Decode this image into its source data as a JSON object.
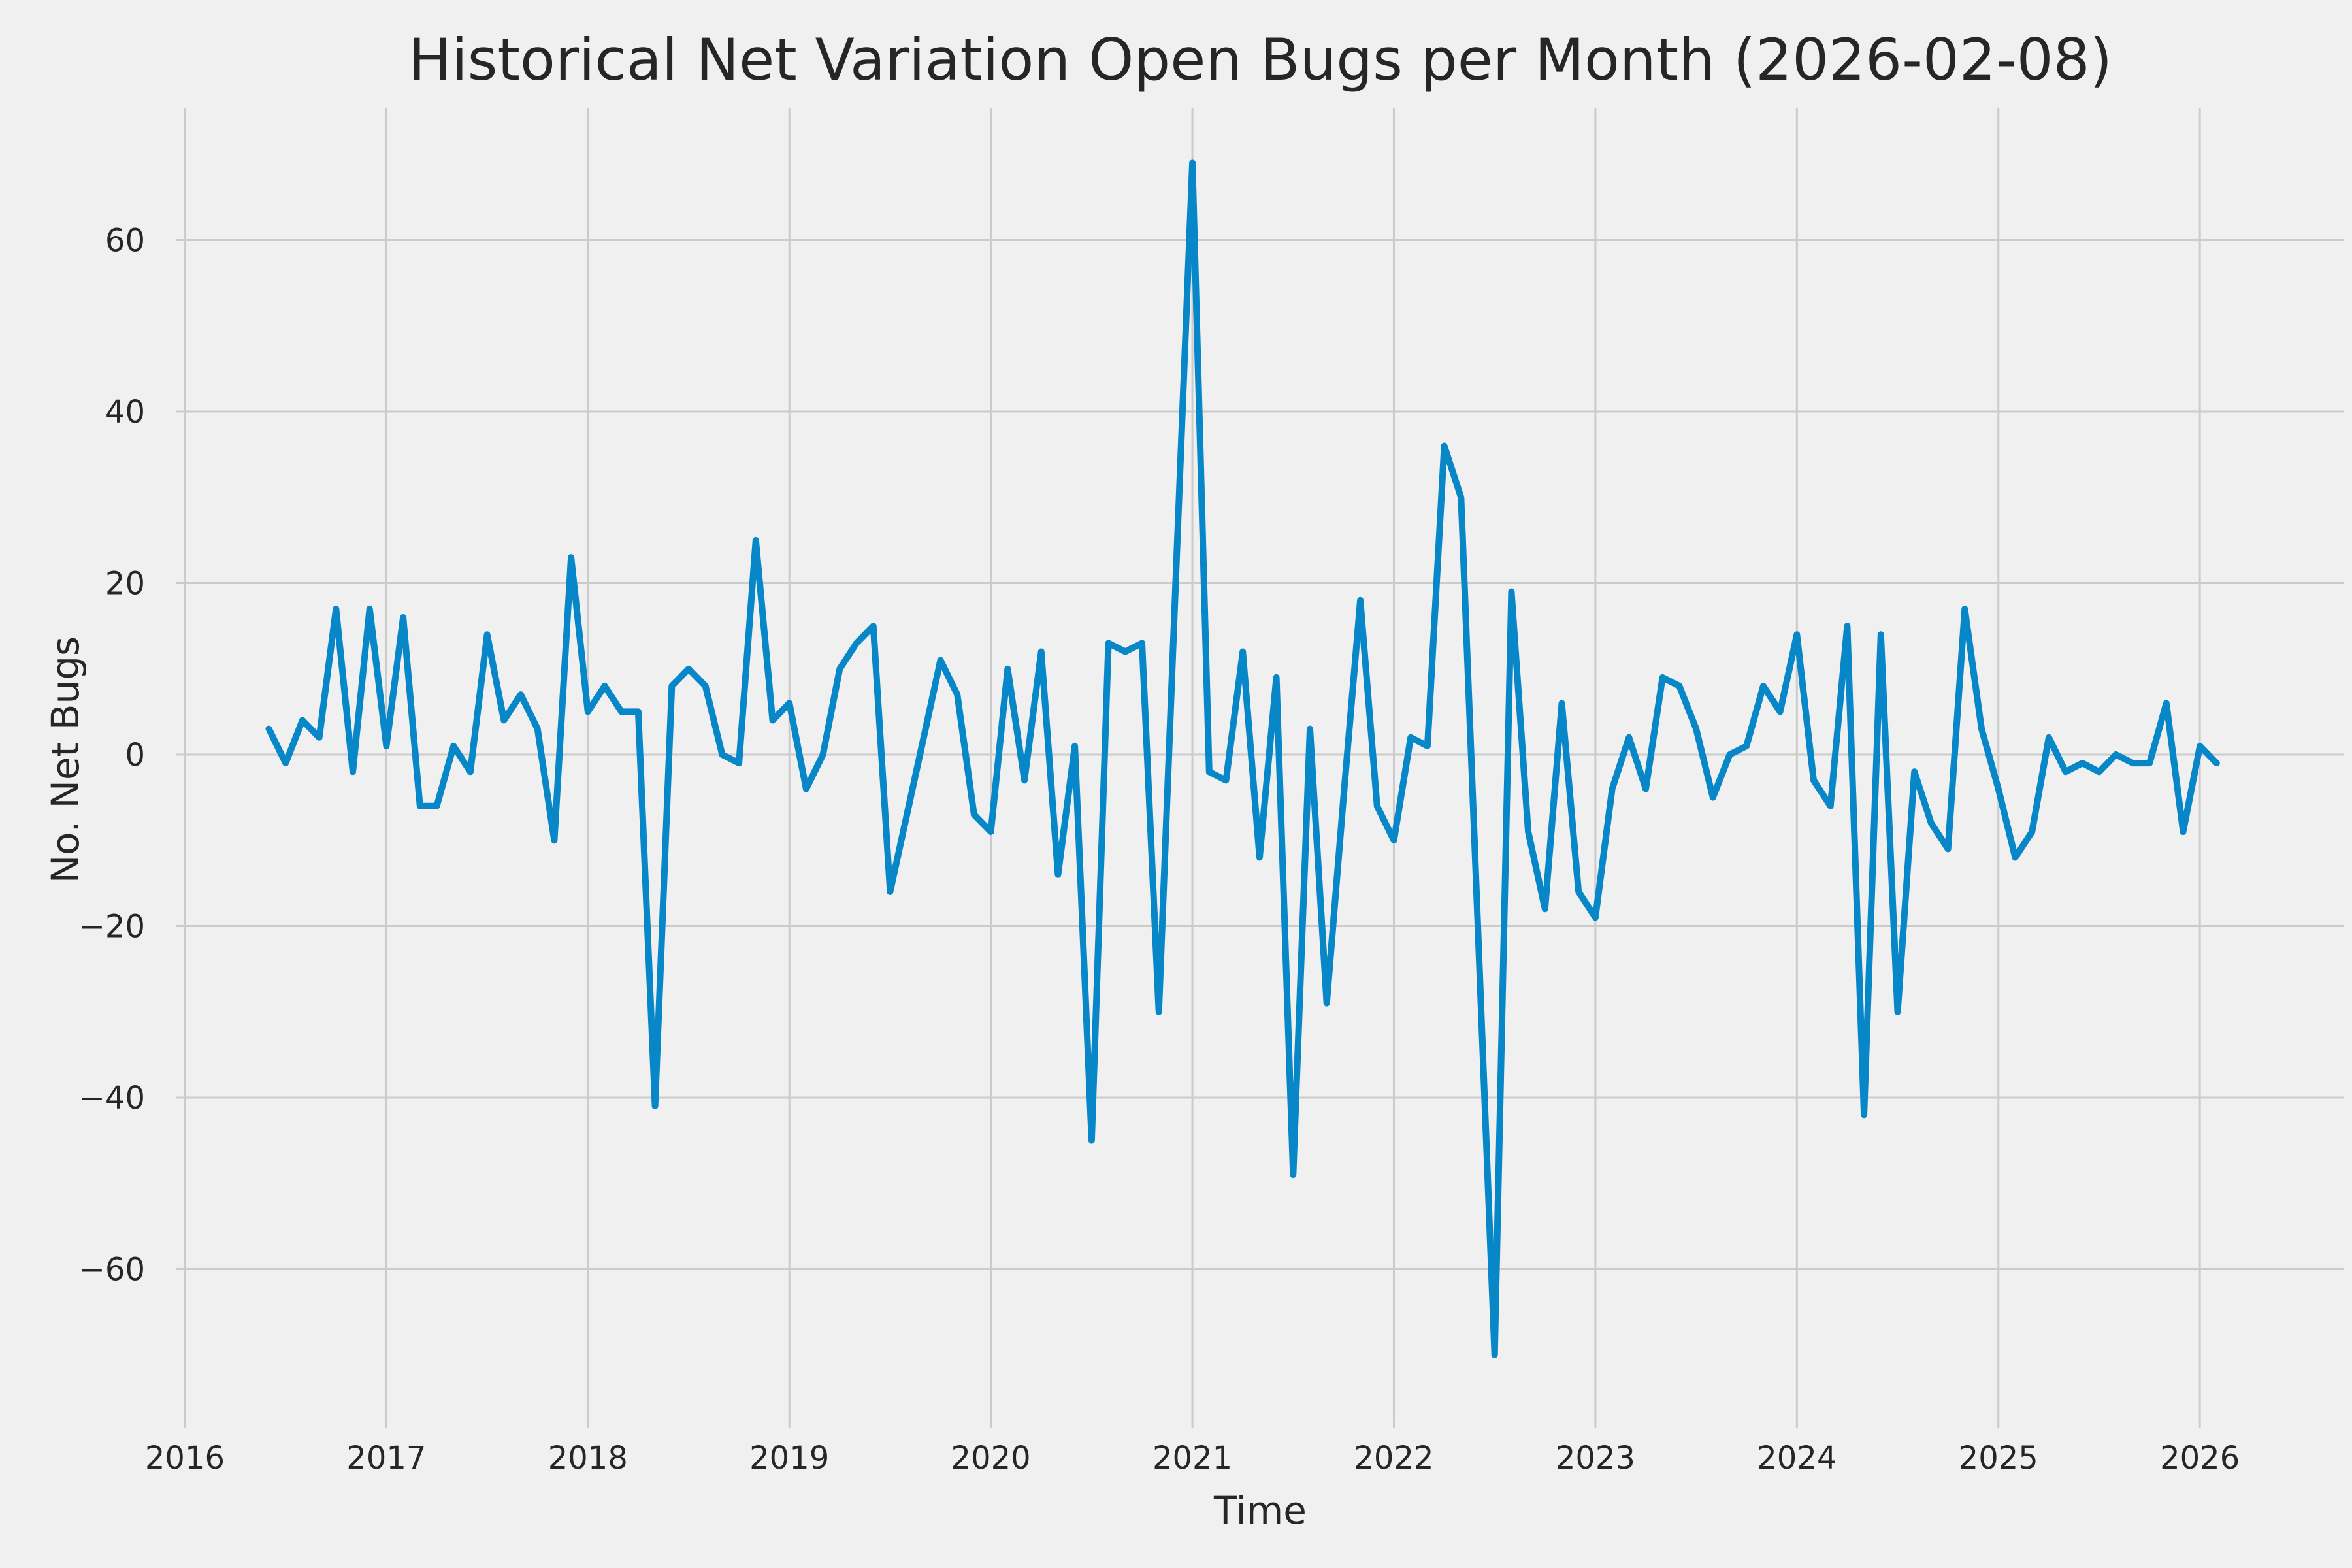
{
  "page": {
    "background_color": "#f0f0f0"
  },
  "chart_data": {
    "type": "line",
    "title": "Historical Net Variation Open Bugs per Month (2026-02-08)",
    "xlabel": "Time",
    "ylabel": "No. Net Bugs",
    "legend": false,
    "grid": true,
    "line_color": "#0887c8",
    "grid_color": "#cbcbcb",
    "background_color": "#f0f0f0",
    "text_color": "#262626",
    "line_width": 10,
    "xlim": [
      2015.958,
      2026.716
    ],
    "ylim": [
      -76.57,
      75.43
    ],
    "x_ticks": [
      2016,
      2017,
      2018,
      2019,
      2020,
      2021,
      2022,
      2023,
      2024,
      2025,
      2026
    ],
    "x_tick_labels": [
      "2016",
      "2017",
      "2018",
      "2019",
      "2020",
      "2021",
      "2022",
      "2023",
      "2024",
      "2025",
      "2026"
    ],
    "y_ticks": [
      -60,
      -40,
      -20,
      0,
      20,
      40,
      60
    ],
    "y_tick_labels": [
      "−60",
      "−40",
      "−20",
      "0",
      "20",
      "40",
      "60"
    ],
    "x_labels": [
      "2016-06",
      "2016-07",
      "2016-08",
      "2016-09",
      "2016-10",
      "2016-11",
      "2016-12",
      "2017-01",
      "2017-02",
      "2017-03",
      "2017-04",
      "2017-05",
      "2017-06",
      "2017-07",
      "2017-08",
      "2017-09",
      "2017-10",
      "2017-11",
      "2017-12",
      "2018-01",
      "2018-02",
      "2018-03",
      "2018-04",
      "2018-05",
      "2018-06",
      "2018-07",
      "2018-08",
      "2018-09",
      "2018-10",
      "2018-11",
      "2018-12",
      "2019-01",
      "2019-02",
      "2019-03",
      "2019-04",
      "2019-05",
      "2019-06",
      "2019-07",
      "2019-08",
      "2019-09",
      "2019-10",
      "2019-11",
      "2019-12",
      "2020-01",
      "2020-02",
      "2020-03",
      "2020-04",
      "2020-05",
      "2020-06",
      "2020-07",
      "2020-08",
      "2020-09",
      "2020-10",
      "2020-11",
      "2020-12",
      "2021-01",
      "2021-02",
      "2021-03",
      "2021-04",
      "2021-05",
      "2021-06",
      "2021-07",
      "2021-08",
      "2021-09",
      "2021-10",
      "2021-11",
      "2021-12",
      "2022-01",
      "2022-02",
      "2022-03",
      "2022-04",
      "2022-05",
      "2022-06",
      "2022-07",
      "2022-08",
      "2022-09",
      "2022-10",
      "2022-11",
      "2022-12",
      "2023-01",
      "2023-02",
      "2023-03",
      "2023-04",
      "2023-05",
      "2023-06",
      "2023-07",
      "2023-08",
      "2023-09",
      "2023-10",
      "2023-11",
      "2023-12",
      "2024-01",
      "2024-02",
      "2024-03",
      "2024-04",
      "2024-05",
      "2024-06",
      "2024-07",
      "2024-08",
      "2024-09",
      "2024-10",
      "2024-11",
      "2024-12",
      "2025-01",
      "2025-02",
      "2025-03",
      "2025-04",
      "2025-05",
      "2025-06",
      "2025-07",
      "2025-08",
      "2025-09",
      "2025-10",
      "2025-11",
      "2025-12",
      "2026-01",
      "2026-02"
    ],
    "values": [
      3,
      -1,
      4,
      2,
      17,
      -2,
      17,
      1,
      16,
      -6,
      -6,
      1,
      -2,
      14,
      4,
      7,
      3,
      -10,
      23,
      5,
      8,
      5,
      5,
      -41,
      8,
      10,
      8,
      0,
      -1,
      25,
      4,
      6,
      -4,
      0,
      10,
      13,
      15,
      -16,
      -7,
      2,
      11,
      7,
      -7,
      -9,
      10,
      -3,
      12,
      -14,
      1,
      -45,
      13,
      12,
      13,
      -30,
      20,
      69,
      -2,
      -3,
      12,
      -12,
      9,
      -49,
      3,
      -29,
      -5,
      18,
      -6,
      -10,
      2,
      1,
      36,
      30,
      -20,
      -70,
      19,
      -9,
      -18,
      6,
      -16,
      -19,
      -4,
      2,
      -4,
      9,
      8,
      3,
      -5,
      0,
      1,
      8,
      5,
      14,
      -3,
      -6,
      15,
      -42,
      14,
      -30,
      -2,
      -8,
      -11,
      17,
      3,
      -4,
      -12,
      -9,
      2,
      -2,
      -1,
      -2,
      0,
      -1,
      -1,
      6,
      -9,
      1,
      -1
    ]
  }
}
